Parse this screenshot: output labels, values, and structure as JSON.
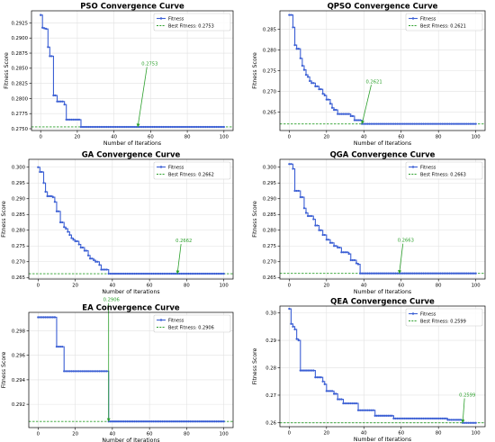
{
  "colors": {
    "line": "#3b5fd4",
    "best": "#2ca02c",
    "grid": "#e2e2e2",
    "axis": "#000000"
  },
  "chart_data": [
    {
      "type": "line",
      "title": "PSO Convergence Curve",
      "xlabel": "Number of Iterations",
      "ylabel": "Fitness Score",
      "xlim": [
        -5,
        105
      ],
      "ylim": [
        0.2747,
        0.2945
      ],
      "xticks": [
        0,
        20,
        40,
        60,
        80,
        100
      ],
      "yticks": [
        0.275,
        0.2775,
        0.28,
        0.2825,
        0.285,
        0.2875,
        0.29,
        0.2925
      ],
      "ytick_labels": [
        "0.2750",
        "0.2775",
        "0.2800",
        "0.2825",
        "0.2850",
        "0.2875",
        "0.2900",
        "0.2925"
      ],
      "grid": true,
      "legend": "top-right",
      "series": [
        {
          "name": "Fitness",
          "steps": [
            [
              0,
              0.2938
            ],
            [
              1,
              0.2917
            ],
            [
              2,
              0.2916
            ],
            [
              3,
              0.2915
            ],
            [
              4,
              0.2885
            ],
            [
              5,
              0.287
            ],
            [
              7,
              0.2805
            ],
            [
              9,
              0.2795
            ],
            [
              13,
              0.279
            ],
            [
              14,
              0.2765
            ],
            [
              22,
              0.2753
            ],
            [
              100,
              0.2753
            ]
          ]
        }
      ],
      "best": {
        "label": "Best Fitness: 0.2753",
        "value": 0.2753,
        "annotation": "0.2753",
        "arrow_x": 53,
        "text_xy": [
          57,
          0.2855
        ]
      }
    },
    {
      "type": "line",
      "title": "QPSO Convergence Curve",
      "xlabel": "Number of Iterations",
      "ylabel": "Fitness Score",
      "xlim": [
        -5,
        105
      ],
      "ylim": [
        0.2605,
        0.2895
      ],
      "xticks": [
        0,
        20,
        40,
        60,
        80,
        100
      ],
      "yticks": [
        0.265,
        0.27,
        0.275,
        0.28,
        0.285
      ],
      "ytick_labels": [
        "0.265",
        "0.270",
        "0.275",
        "0.280",
        "0.285"
      ],
      "grid": true,
      "legend": "top-right",
      "series": [
        {
          "name": "Fitness",
          "steps": [
            [
              0,
              0.2885
            ],
            [
              1,
              0.2885
            ],
            [
              2,
              0.2855
            ],
            [
              3,
              0.2812
            ],
            [
              4,
              0.2803
            ],
            [
              5,
              0.2803
            ],
            [
              6,
              0.278
            ],
            [
              7,
              0.2762
            ],
            [
              8,
              0.2752
            ],
            [
              9,
              0.274
            ],
            [
              10,
              0.2735
            ],
            [
              11,
              0.2725
            ],
            [
              12,
              0.272
            ],
            [
              14,
              0.2712
            ],
            [
              16,
              0.2705
            ],
            [
              18,
              0.2694
            ],
            [
              19,
              0.269
            ],
            [
              20,
              0.268
            ],
            [
              22,
              0.267
            ],
            [
              23,
              0.266
            ],
            [
              24,
              0.2655
            ],
            [
              26,
              0.2645
            ],
            [
              33,
              0.264
            ],
            [
              35,
              0.263
            ],
            [
              39,
              0.2621
            ],
            [
              100,
              0.2621
            ]
          ]
        }
      ],
      "best": {
        "label": "Best Fitness: 0.2621",
        "value": 0.2621,
        "annotation": "0.2621",
        "arrow_x": 39,
        "text_xy": [
          43,
          0.272
        ]
      }
    },
    {
      "type": "line",
      "title": "GA Convergence Curve",
      "xlabel": "Number of Iterations",
      "ylabel": "Fitness Score",
      "xlim": [
        -5,
        105
      ],
      "ylim": [
        0.2645,
        0.3025
      ],
      "xticks": [
        0,
        20,
        40,
        60,
        80,
        100
      ],
      "yticks": [
        0.265,
        0.27,
        0.275,
        0.28,
        0.285,
        0.29,
        0.295,
        0.3
      ],
      "ytick_labels": [
        "0.265",
        "0.270",
        "0.275",
        "0.280",
        "0.285",
        "0.290",
        "0.295",
        "0.300"
      ],
      "grid": true,
      "legend": "top-right",
      "series": [
        {
          "name": "Fitness",
          "steps": [
            [
              0,
              0.3
            ],
            [
              1,
              0.2985
            ],
            [
              3,
              0.295
            ],
            [
              4,
              0.2922
            ],
            [
              5,
              0.2908
            ],
            [
              8,
              0.2905
            ],
            [
              9,
              0.289
            ],
            [
              10,
              0.286
            ],
            [
              12,
              0.2825
            ],
            [
              14,
              0.281
            ],
            [
              15,
              0.2805
            ],
            [
              16,
              0.2795
            ],
            [
              17,
              0.2785
            ],
            [
              18,
              0.2775
            ],
            [
              19,
              0.277
            ],
            [
              20,
              0.2765
            ],
            [
              22,
              0.2755
            ],
            [
              23,
              0.2745
            ],
            [
              25,
              0.2735
            ],
            [
              27,
              0.272
            ],
            [
              28,
              0.271
            ],
            [
              30,
              0.2705
            ],
            [
              31,
              0.27
            ],
            [
              33,
              0.269
            ],
            [
              34,
              0.2675
            ],
            [
              38,
              0.2662
            ],
            [
              100,
              0.2662
            ]
          ]
        }
      ],
      "best": {
        "label": "Best Fitness: 0.2662",
        "value": 0.2662,
        "annotation": "0.2662",
        "arrow_x": 75,
        "text_xy": [
          76,
          0.2762
        ]
      }
    },
    {
      "type": "line",
      "title": "QGA Convergence Curve",
      "xlabel": "Number of Iterations",
      "ylabel": "Fitness Score",
      "xlim": [
        -5,
        105
      ],
      "ylim": [
        0.2645,
        0.3025
      ],
      "xticks": [
        0,
        20,
        40,
        60,
        80,
        100
      ],
      "yticks": [
        0.265,
        0.27,
        0.275,
        0.28,
        0.285,
        0.29,
        0.295,
        0.3
      ],
      "ytick_labels": [
        "0.265",
        "0.270",
        "0.275",
        "0.280",
        "0.285",
        "0.290",
        "0.295",
        "0.300"
      ],
      "grid": true,
      "legend": "top-right",
      "series": [
        {
          "name": "Fitness",
          "steps": [
            [
              0,
              0.301
            ],
            [
              2,
              0.2995
            ],
            [
              3,
              0.2925
            ],
            [
              6,
              0.2905
            ],
            [
              8,
              0.287
            ],
            [
              9,
              0.2855
            ],
            [
              10,
              0.2845
            ],
            [
              13,
              0.2835
            ],
            [
              14,
              0.2815
            ],
            [
              16,
              0.28
            ],
            [
              18,
              0.2785
            ],
            [
              20,
              0.277
            ],
            [
              22,
              0.276
            ],
            [
              24,
              0.275
            ],
            [
              26,
              0.2745
            ],
            [
              28,
              0.273
            ],
            [
              32,
              0.2725
            ],
            [
              33,
              0.2705
            ],
            [
              36,
              0.2695
            ],
            [
              37,
              0.2692
            ],
            [
              38,
              0.2663
            ],
            [
              100,
              0.2663
            ]
          ]
        }
      ],
      "best": {
        "label": "Best Fitness: 0.2663",
        "value": 0.2663,
        "annotation": "0.2663",
        "arrow_x": 59,
        "text_xy": [
          60,
          0.2763
        ]
      }
    },
    {
      "type": "line",
      "title": "EA Convergence Curve",
      "xlabel": "Number of Iterations",
      "ylabel": "Fitness Score",
      "xlim": [
        -5,
        105
      ],
      "ylim": [
        0.2901,
        0.2995
      ],
      "xticks": [
        0,
        20,
        40,
        60,
        80,
        100
      ],
      "yticks": [
        0.292,
        0.294,
        0.296,
        0.298
      ],
      "ytick_labels": [
        "0.292",
        "0.294",
        "0.296",
        "0.298"
      ],
      "grid": true,
      "legend": "top-right",
      "series": [
        {
          "name": "Fitness",
          "steps": [
            [
              0,
              0.2991
            ],
            [
              10,
              0.2967
            ],
            [
              14,
              0.2947
            ],
            [
              38,
              0.2906
            ],
            [
              100,
              0.2906
            ]
          ]
        }
      ],
      "best": {
        "label": "Best Fitness: 0.2906",
        "value": 0.2906,
        "annotation": "0.2906",
        "arrow_x": 38,
        "text_xy": [
          37,
          0.3004
        ]
      }
    },
    {
      "type": "line",
      "title": "QEA Convergence Curve",
      "xlabel": "Number of Iterations",
      "ylabel": "Fitness Score",
      "xlim": [
        -5,
        105
      ],
      "ylim": [
        0.2585,
        0.3025
      ],
      "xticks": [
        0,
        20,
        40,
        60,
        80,
        100
      ],
      "yticks": [
        0.26,
        0.27,
        0.28,
        0.29,
        0.3
      ],
      "ytick_labels": [
        "0.26",
        "0.27",
        "0.28",
        "0.29",
        "0.30"
      ],
      "grid": true,
      "legend": "top-right",
      "series": [
        {
          "name": "Fitness",
          "steps": [
            [
              0,
              0.3015
            ],
            [
              1,
              0.296
            ],
            [
              2,
              0.295
            ],
            [
              3,
              0.294
            ],
            [
              4,
              0.2905
            ],
            [
              5,
              0.29
            ],
            [
              6,
              0.279
            ],
            [
              14,
              0.2765
            ],
            [
              18,
              0.275
            ],
            [
              19,
              0.274
            ],
            [
              20,
              0.2715
            ],
            [
              24,
              0.2705
            ],
            [
              26,
              0.2685
            ],
            [
              29,
              0.267
            ],
            [
              37,
              0.2645
            ],
            [
              46,
              0.2625
            ],
            [
              56,
              0.2615
            ],
            [
              85,
              0.261
            ],
            [
              93,
              0.2599
            ],
            [
              100,
              0.2599
            ]
          ]
        }
      ],
      "best": {
        "label": "Best Fitness: 0.2599",
        "value": 0.2599,
        "annotation": "0.2599",
        "arrow_x": 93,
        "text_xy": [
          93,
          0.2695
        ]
      }
    }
  ]
}
